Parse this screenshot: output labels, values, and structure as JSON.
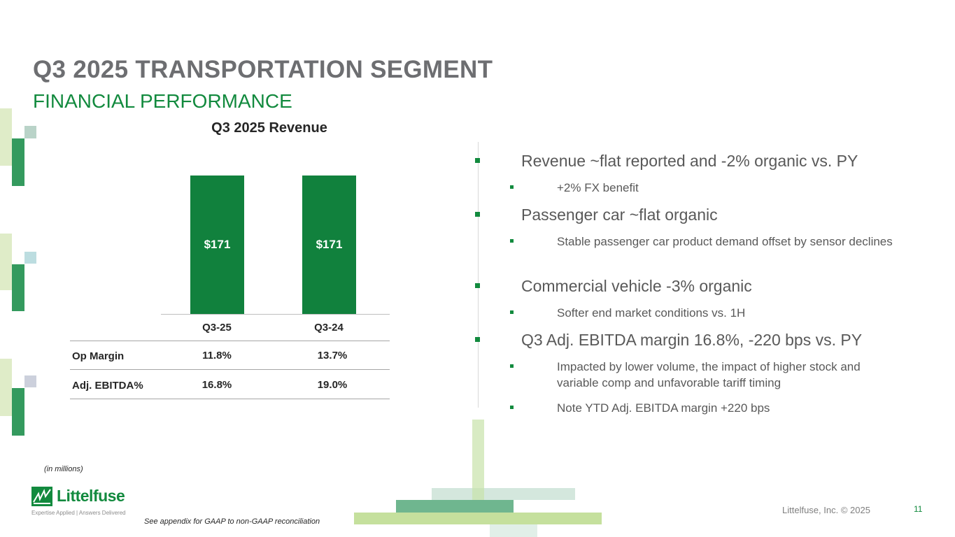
{
  "header": {
    "title": "Q3 2025 TRANSPORTATION SEGMENT",
    "subtitle": "FINANCIAL PERFORMANCE"
  },
  "chart_data": {
    "type": "bar",
    "title": "Q3 2025 Revenue",
    "categories": [
      "Q3-25",
      "Q3-24"
    ],
    "values": [
      171,
      171
    ],
    "labels": [
      "$171",
      "$171"
    ],
    "ylim": [
      0,
      171
    ],
    "units": "(in millions)",
    "color": "#11813d"
  },
  "metrics_table": {
    "rows": [
      {
        "label": "Op Margin",
        "values": [
          "11.8%",
          "13.7%"
        ]
      },
      {
        "label": "Adj. EBITDA%",
        "values": [
          "16.8%",
          "19.0%"
        ]
      }
    ]
  },
  "bullets": [
    {
      "text": "Revenue ~flat reported and -2% organic vs. PY",
      "subs": [
        "+2% FX benefit"
      ]
    },
    {
      "text": "Passenger car ~flat organic",
      "subs": [
        "Stable passenger car product demand offset by sensor declines"
      ]
    },
    {
      "text": "Commercial vehicle -3% organic",
      "subs": [
        "Softer end market conditions vs. 1H"
      ]
    },
    {
      "text": "Q3 Adj. EBITDA margin 16.8%, -220 bps vs. PY",
      "subs": [
        "Impacted by lower volume, the impact of higher stock and variable comp and unfavorable tariff timing",
        "Note YTD Adj. EBITDA margin +220 bps"
      ]
    }
  ],
  "footer": {
    "units_note": "(in millions)",
    "appendix_note": "See appendix for GAAP to non-GAAP reconciliation",
    "copyright": "Littelfuse, Inc. © 2025",
    "page_number": "11",
    "logo_text": "Littelfuse",
    "tagline": "Expertise Applied | Answers Delivered"
  },
  "colors": {
    "brand_green": "#128a3e",
    "bar_green": "#11813d"
  }
}
